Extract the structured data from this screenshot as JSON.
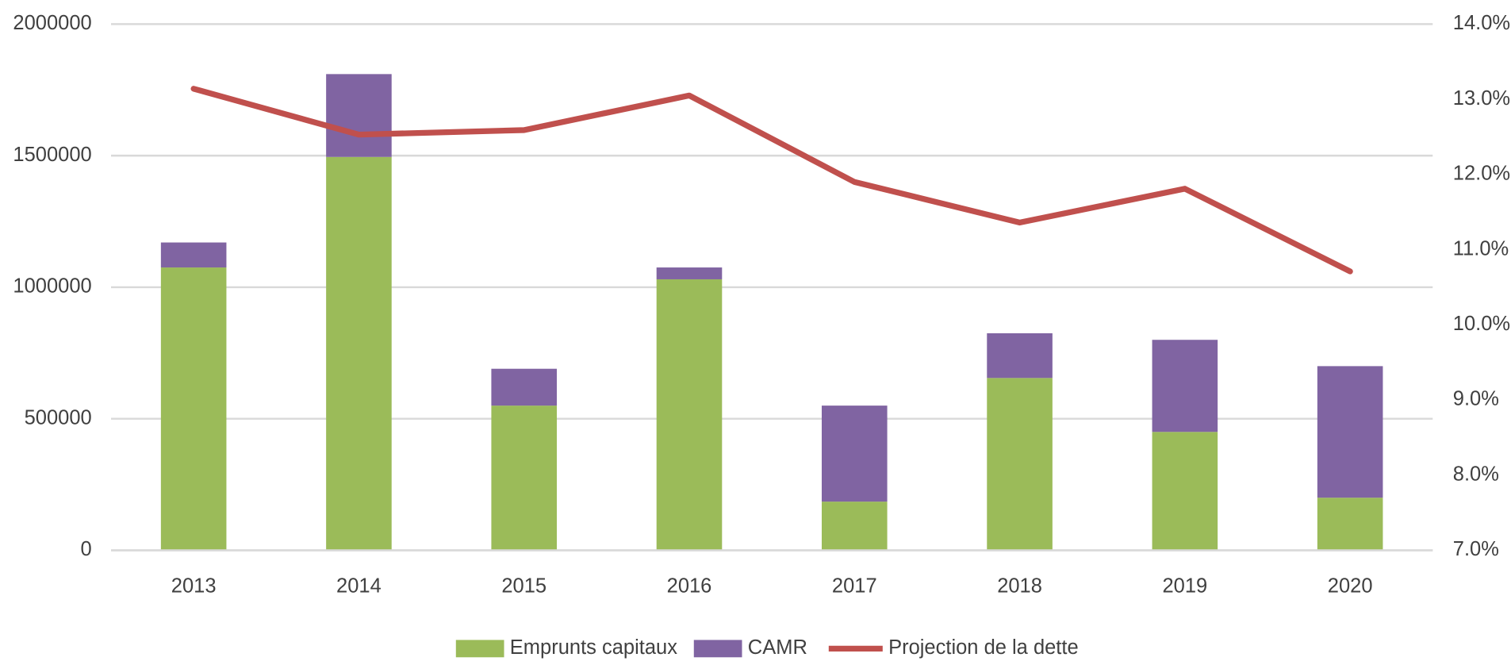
{
  "chart_data": {
    "type": "bar",
    "categories": [
      "2013",
      "2014",
      "2015",
      "2016",
      "2017",
      "2018",
      "2019",
      "2020"
    ],
    "stacked": true,
    "series": [
      {
        "name": "Emprunts capitaux",
        "color": "#9bbb59",
        "values": [
          1075000,
          1495000,
          550000,
          1030000,
          185000,
          655000,
          450000,
          200000
        ]
      },
      {
        "name": "CAMR",
        "color": "#8064a2",
        "values": [
          95000,
          315000,
          140000,
          45000,
          365000,
          170000,
          350000,
          500000
        ]
      },
      {
        "name": "Projection de la dette",
        "type": "line",
        "axis": "y2",
        "color": "#c0504d",
        "values": [
          13.14,
          12.53,
          12.59,
          13.05,
          11.9,
          11.36,
          11.81,
          10.71
        ]
      }
    ],
    "ylim": [
      0,
      2000000
    ],
    "yticks": [
      0,
      500000,
      1000000,
      1500000,
      2000000
    ],
    "y2lim": [
      7,
      14
    ],
    "y2ticks": [
      {
        "value": 7,
        "label": "7.0%"
      },
      {
        "value": 8,
        "label": "8.0%"
      },
      {
        "value": 9,
        "label": "9.0%"
      },
      {
        "value": 10,
        "label": "10.0%"
      },
      {
        "value": 11,
        "label": "11.0%"
      },
      {
        "value": 12,
        "label": "12.0%"
      },
      {
        "value": 13,
        "label": "13.0%"
      },
      {
        "value": 14,
        "label": "14.0%"
      }
    ],
    "grid": true,
    "legend": "bottom"
  }
}
